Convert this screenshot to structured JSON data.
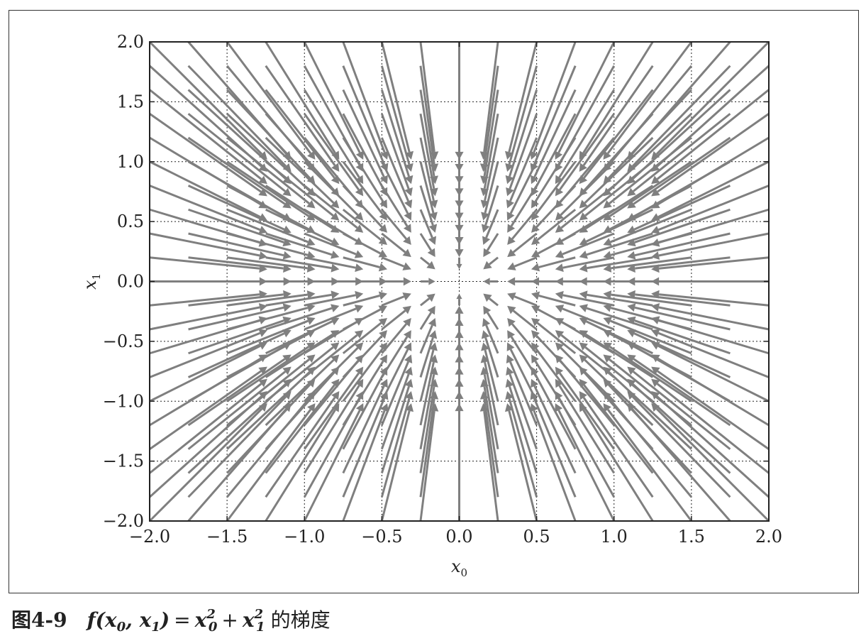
{
  "chart_data": {
    "type": "quiver",
    "title": "",
    "xlabel": "x",
    "xlabel_sub": "0",
    "ylabel": "x",
    "ylabel_sub": "1",
    "xlim": [
      -2.0,
      2.0
    ],
    "ylim": [
      -2.0,
      2.0
    ],
    "xticks": [
      -2.0,
      -1.5,
      -1.0,
      -0.5,
      0.0,
      0.5,
      1.0,
      1.5,
      2.0
    ],
    "yticks": [
      -2.0,
      -1.5,
      -1.0,
      -0.5,
      0.0,
      0.5,
      1.0,
      1.5,
      2.0
    ],
    "xtick_labels": [
      "−2.0",
      "−1.5",
      "−1.0",
      "−0.5",
      "0.0",
      "0.5",
      "1.0",
      "1.5",
      "2.0"
    ],
    "ytick_labels": [
      "−2.0",
      "−1.5",
      "−1.0",
      "−0.5",
      "0.0",
      "0.5",
      "1.0",
      "1.5",
      "2.0"
    ],
    "grid": true,
    "grid_style": "dotted",
    "arrow_color": "#7f7f7f",
    "function": "f(x0, x1) = x0^2 + x1^2",
    "vector_field": "negative gradient (-2*x0, -2*x1)",
    "arrow_grid_x": [
      -2.0,
      -1.75,
      -1.5,
      -1.25,
      -1.0,
      -0.75,
      -0.5,
      -0.25,
      0.0,
      0.25,
      0.5,
      0.75,
      1.0,
      1.25,
      1.5,
      1.75,
      2.0
    ],
    "arrow_grid_y": [
      -2.0,
      -1.8,
      -1.6,
      -1.4,
      -1.2,
      -1.0,
      -0.8,
      -0.6,
      -0.4,
      -0.2,
      0.0,
      0.2,
      0.4,
      0.6,
      0.8,
      1.0,
      1.2,
      1.4,
      1.6,
      1.8,
      2.0
    ]
  },
  "caption": {
    "figure_number": "图4-9",
    "formula_lhs": "f(x",
    "formula_text": "f(x0, x1) = x0² + x1²",
    "suffix": "的梯度"
  }
}
